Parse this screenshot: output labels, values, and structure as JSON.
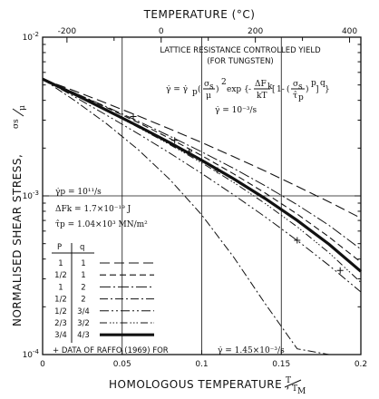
{
  "chart_data": {
    "type": "line",
    "title": "",
    "xlabel": "HOMOLOGOUS TEMPERATURE , T/T_M",
    "xlabel_parts": {
      "text": "HOMOLOGOUS TEMPERATURE ,",
      "sym": "T",
      "sub": "M"
    },
    "ylabel": "NORMALISED SHEAR STRESS, σs/μ",
    "ylabel_parts": {
      "text": "NORMALISED SHEAR STRESS,",
      "num": "σs",
      "den": "μ"
    },
    "top_xlabel": "TEMPERATURE (°C)",
    "xlim": [
      0,
      0.2
    ],
    "ylim_log": [
      -4,
      -2
    ],
    "y_scale": "log",
    "x_ticks": [
      {
        "v": 0,
        "label": "0"
      },
      {
        "v": 0.05,
        "label": "0.05"
      },
      {
        "v": 0.1,
        "label": "0.1"
      },
      {
        "v": 0.15,
        "label": "0.15"
      },
      {
        "v": 0.2,
        "label": "0.2"
      }
    ],
    "top_ticks": [
      {
        "v": -200,
        "label": "-200",
        "x": 0.0153
      },
      {
        "v": 0,
        "label": "0",
        "x": 0.0745
      },
      {
        "v": 200,
        "label": "200",
        "x": 0.1337
      },
      {
        "v": 400,
        "label": "400",
        "x": 0.1929
      }
    ],
    "top_minor_ticks": [
      0.0449,
      0.1041,
      0.1633
    ],
    "y_ticks": [
      {
        "log": -2,
        "base": "10",
        "exp": "-2"
      },
      {
        "log": -3,
        "base": "10",
        "exp": "-3"
      },
      {
        "log": -4,
        "base": "10",
        "exp": "-4"
      }
    ],
    "grid": {
      "vertical_x": [
        0.05,
        0.1,
        0.15
      ],
      "horizontal_log": [
        -3
      ]
    },
    "y0_log": -2.264,
    "series": [
      {
        "name": "p=1, q=1",
        "dash": "11 5",
        "width": 1.1,
        "x": [
          0,
          0.02,
          0.04,
          0.06,
          0.08,
          0.1,
          0.12,
          0.14,
          0.16,
          0.18,
          0.2
        ],
        "log_y": [
          -2.264,
          -2.338,
          -2.416,
          -2.496,
          -2.579,
          -2.664,
          -2.753,
          -2.844,
          -2.94,
          -3.038,
          -3.14
        ]
      },
      {
        "name": "p=1/2, q=1",
        "dash": "7 4",
        "width": 1.1,
        "x": [
          0,
          0.02,
          0.04,
          0.06,
          0.08,
          0.1,
          0.12,
          0.14,
          0.16,
          0.18,
          0.2
        ],
        "log_y": [
          -2.264,
          -2.35,
          -2.443,
          -2.538,
          -2.639,
          -2.746,
          -2.861,
          -2.983,
          -3.115,
          -3.259,
          -3.418
        ]
      },
      {
        "name": "p=1, q=2",
        "dash": "12 3 2 3",
        "width": 1.0,
        "x": [
          0,
          0.02,
          0.04,
          0.06,
          0.08,
          0.1,
          0.12,
          0.14,
          0.16,
          0.18,
          0.2
        ],
        "log_y": [
          -2.264,
          -2.351,
          -2.438,
          -2.529,
          -2.624,
          -2.723,
          -2.826,
          -2.937,
          -3.056,
          -3.186,
          -3.336
        ]
      },
      {
        "name": "p=1/2, q=2",
        "dash": "9 3 2 3",
        "width": 1.0,
        "x": [
          0,
          0.02,
          0.04,
          0.06,
          0.08,
          0.1,
          0.12,
          0.14,
          0.16,
          0.18,
          0.2
        ],
        "log_y": [
          -2.264,
          -2.398,
          -2.544,
          -2.708,
          -2.897,
          -3.12,
          -3.385,
          -3.681,
          -3.964,
          -4.0,
          -4.0
        ]
      },
      {
        "name": "p=1/2, q=3/4",
        "dash": "10 3 2 3 2 3",
        "width": 1.0,
        "x": [
          0,
          0.02,
          0.04,
          0.06,
          0.08,
          0.1,
          0.12,
          0.14,
          0.16,
          0.18,
          0.2
        ],
        "log_y": [
          -2.264,
          -2.375,
          -2.49,
          -2.608,
          -2.731,
          -2.859,
          -2.993,
          -3.133,
          -3.281,
          -3.438,
          -3.606
        ]
      },
      {
        "name": "p=2/3, q=3/2",
        "dash": "8 3 1.5 2 1.5 2 1.5 3",
        "width": 1.0,
        "x": [
          0,
          0.02,
          0.04,
          0.06,
          0.08,
          0.1,
          0.12,
          0.14,
          0.16,
          0.18,
          0.2
        ],
        "log_y": [
          -2.264,
          -2.363,
          -2.463,
          -2.568,
          -2.677,
          -2.792,
          -2.915,
          -3.049,
          -3.195,
          -3.358,
          -3.546
        ]
      },
      {
        "name": "p=3/4, q=4/3",
        "dash": "",
        "width": 3.2,
        "x": [
          0,
          0.02,
          0.04,
          0.06,
          0.08,
          0.1,
          0.12,
          0.14,
          0.16,
          0.18,
          0.2
        ],
        "log_y": [
          -2.264,
          -2.359,
          -2.459,
          -2.56,
          -2.665,
          -2.776,
          -2.892,
          -3.018,
          -3.155,
          -3.305,
          -3.476
        ]
      }
    ],
    "raffo_points": {
      "name": "DATA OF RAFFO (1969)",
      "marker": "+",
      "x": [
        0.057,
        0.083,
        0.092,
        0.11,
        0.16,
        0.187
      ],
      "log_y": [
        -2.5,
        -2.65,
        -2.72,
        -2.84,
        -3.28,
        -3.47
      ]
    },
    "annotations": {
      "heading1": "LATTICE RESISTANCE CONTROLLED YIELD",
      "heading2": "(FOR TUNGSTEN)",
      "strain_rate": "γ̇ = 10⁻³/s",
      "ref_rate": "γ̇p = 10¹¹/s",
      "activation": "ΔFk = 1.7×10⁻¹⁹ J",
      "peierls": "τ̂p = 1.04×10³ MN/m²"
    },
    "legend": {
      "position": "lower-left",
      "headers": [
        "P",
        "q"
      ],
      "rows": [
        {
          "p": "1",
          "q": "1"
        },
        {
          "p": "1/2",
          "q": "1"
        },
        {
          "p": "1",
          "q": "2"
        },
        {
          "p": "1/2",
          "q": "2"
        },
        {
          "p": "1/2",
          "q": "3/4"
        },
        {
          "p": "2/3",
          "q": "3/2"
        },
        {
          "p": "3/4",
          "q": "4/3"
        }
      ],
      "raffo_note": "+ DATA OF RAFFO (1969) FOR",
      "raffo_rate": "γ̇ = 1.45×10⁻³/s"
    }
  }
}
